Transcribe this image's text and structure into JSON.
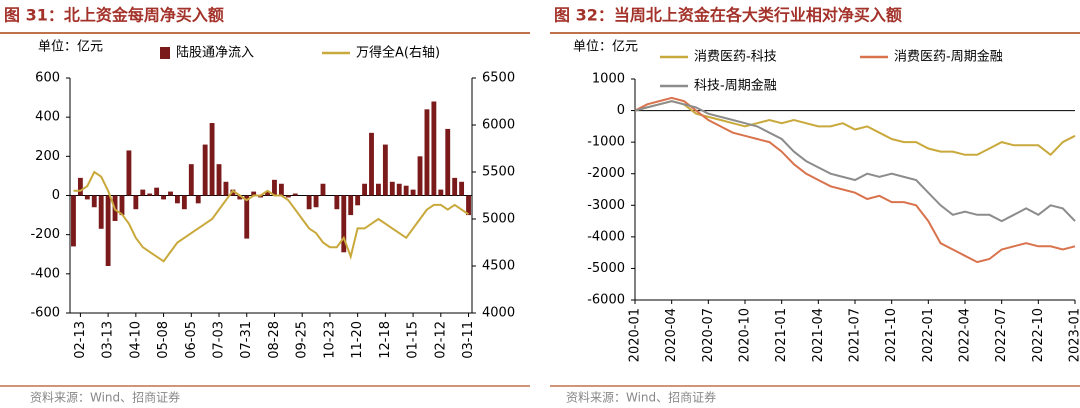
{
  "chart_data": [
    {
      "type": "bar",
      "title": "图 31：北上资金每周净买入额",
      "unit": "单位：亿元",
      "source": "资料来源：Wind、招商证券",
      "categories": [
        null,
        "02-13",
        null,
        null,
        null,
        "03-13",
        null,
        null,
        null,
        "04-10",
        null,
        null,
        null,
        "05-08",
        null,
        null,
        null,
        "06-05",
        null,
        null,
        null,
        "07-03",
        null,
        null,
        null,
        "07-31",
        null,
        null,
        null,
        "08-28",
        null,
        null,
        null,
        "09-25",
        null,
        null,
        null,
        "10-23",
        null,
        null,
        null,
        "11-20",
        null,
        null,
        null,
        "12-18",
        null,
        null,
        null,
        "01-15",
        null,
        null,
        null,
        "02-12",
        null,
        null,
        null,
        "03-11"
      ],
      "series": [
        {
          "name": "陆股通净流入",
          "color": "#7b1a1a",
          "type": "bar",
          "values": [
            -260,
            90,
            -20,
            -60,
            -170,
            -360,
            -130,
            -100,
            230,
            -70,
            30,
            10,
            40,
            -20,
            20,
            -40,
            -70,
            160,
            -40,
            260,
            370,
            160,
            70,
            30,
            -20,
            -220,
            20,
            -10,
            20,
            80,
            60,
            -10,
            10,
            0,
            -70,
            -60,
            60,
            0,
            -70,
            -290,
            -100,
            -50,
            60,
            320,
            60,
            260,
            70,
            60,
            50,
            30,
            200,
            440,
            480,
            30,
            340,
            90,
            70,
            -100
          ]
        },
        {
          "name": "万得全A(右轴)",
          "color": "#c9a93b",
          "type": "line",
          "axis": "y2",
          "values": [
            5300,
            5300,
            5350,
            5500,
            5450,
            5300,
            5100,
            5050,
            4950,
            4800,
            4700,
            4650,
            4600,
            4550,
            4650,
            4750,
            4800,
            4850,
            4900,
            4950,
            5000,
            5100,
            5200,
            5300,
            5250,
            5200,
            5250,
            5250,
            5300,
            5250,
            5250,
            5200,
            5100,
            5000,
            4900,
            4850,
            4750,
            4700,
            4700,
            4800,
            4600,
            4900,
            4900,
            4950,
            5000,
            4950,
            4900,
            4850,
            4800,
            4900,
            5000,
            5100,
            5150,
            5150,
            5100,
            5150,
            5100,
            5050
          ]
        }
      ],
      "ylim": [
        -600,
        600
      ],
      "yticks": [
        -600,
        -400,
        -200,
        0,
        200,
        400,
        600
      ],
      "y2lim": [
        4000,
        6500
      ],
      "y2ticks": [
        4000,
        4500,
        5000,
        5500,
        6000,
        6500
      ],
      "grid": false
    },
    {
      "type": "line",
      "title": "图 32：当周北上资金在各大类行业相对净买入额",
      "unit": "单位：亿元",
      "source": "资料来源：Wind、招商证券",
      "categories": [
        "2020-01",
        null,
        null,
        "2020-04",
        null,
        null,
        "2020-07",
        null,
        null,
        "2020-10",
        null,
        null,
        "2021-01",
        null,
        null,
        "2021-04",
        null,
        null,
        "2021-07",
        null,
        null,
        "2021-10",
        null,
        null,
        "2022-01",
        null,
        null,
        "2022-04",
        null,
        null,
        "2022-07",
        null,
        null,
        "2022-10",
        null,
        null,
        "2023-01"
      ],
      "series": [
        {
          "name": "消费医药-科技",
          "color": "#c9a93b",
          "values": [
            0,
            100,
            200,
            300,
            200,
            -100,
            -200,
            -300,
            -400,
            -500,
            -400,
            -300,
            -400,
            -300,
            -400,
            -500,
            -500,
            -400,
            -600,
            -500,
            -700,
            -900,
            -1000,
            -1000,
            -1200,
            -1300,
            -1300,
            -1400,
            -1400,
            -1200,
            -1000,
            -1100,
            -1100,
            -1100,
            -1400,
            -1000,
            -800
          ]
        },
        {
          "name": "消费医药-周期金融",
          "color": "#d9734e",
          "values": [
            0,
            200,
            300,
            400,
            300,
            0,
            -300,
            -500,
            -700,
            -800,
            -900,
            -1000,
            -1300,
            -1700,
            -2000,
            -2200,
            -2400,
            -2500,
            -2600,
            -2800,
            -2700,
            -2900,
            -2900,
            -3000,
            -3500,
            -4200,
            -4400,
            -4600,
            -4800,
            -4700,
            -4400,
            -4300,
            -4200,
            -4300,
            -4300,
            -4400,
            -4300
          ]
        },
        {
          "name": "科技-周期金融",
          "color": "#8c8c8c",
          "values": [
            0,
            100,
            200,
            300,
            200,
            100,
            -100,
            -200,
            -300,
            -400,
            -500,
            -700,
            -900,
            -1300,
            -1600,
            -1800,
            -2000,
            -2100,
            -2200,
            -2000,
            -2100,
            -2000,
            -2100,
            -2200,
            -2600,
            -3000,
            -3300,
            -3200,
            -3300,
            -3300,
            -3500,
            -3300,
            -3100,
            -3300,
            -3000,
            -3100,
            -3500
          ]
        }
      ],
      "ylim": [
        -6000,
        1000
      ],
      "yticks": [
        -6000,
        -5000,
        -4000,
        -3000,
        -2000,
        -1000,
        0,
        1000
      ],
      "grid": false
    }
  ]
}
